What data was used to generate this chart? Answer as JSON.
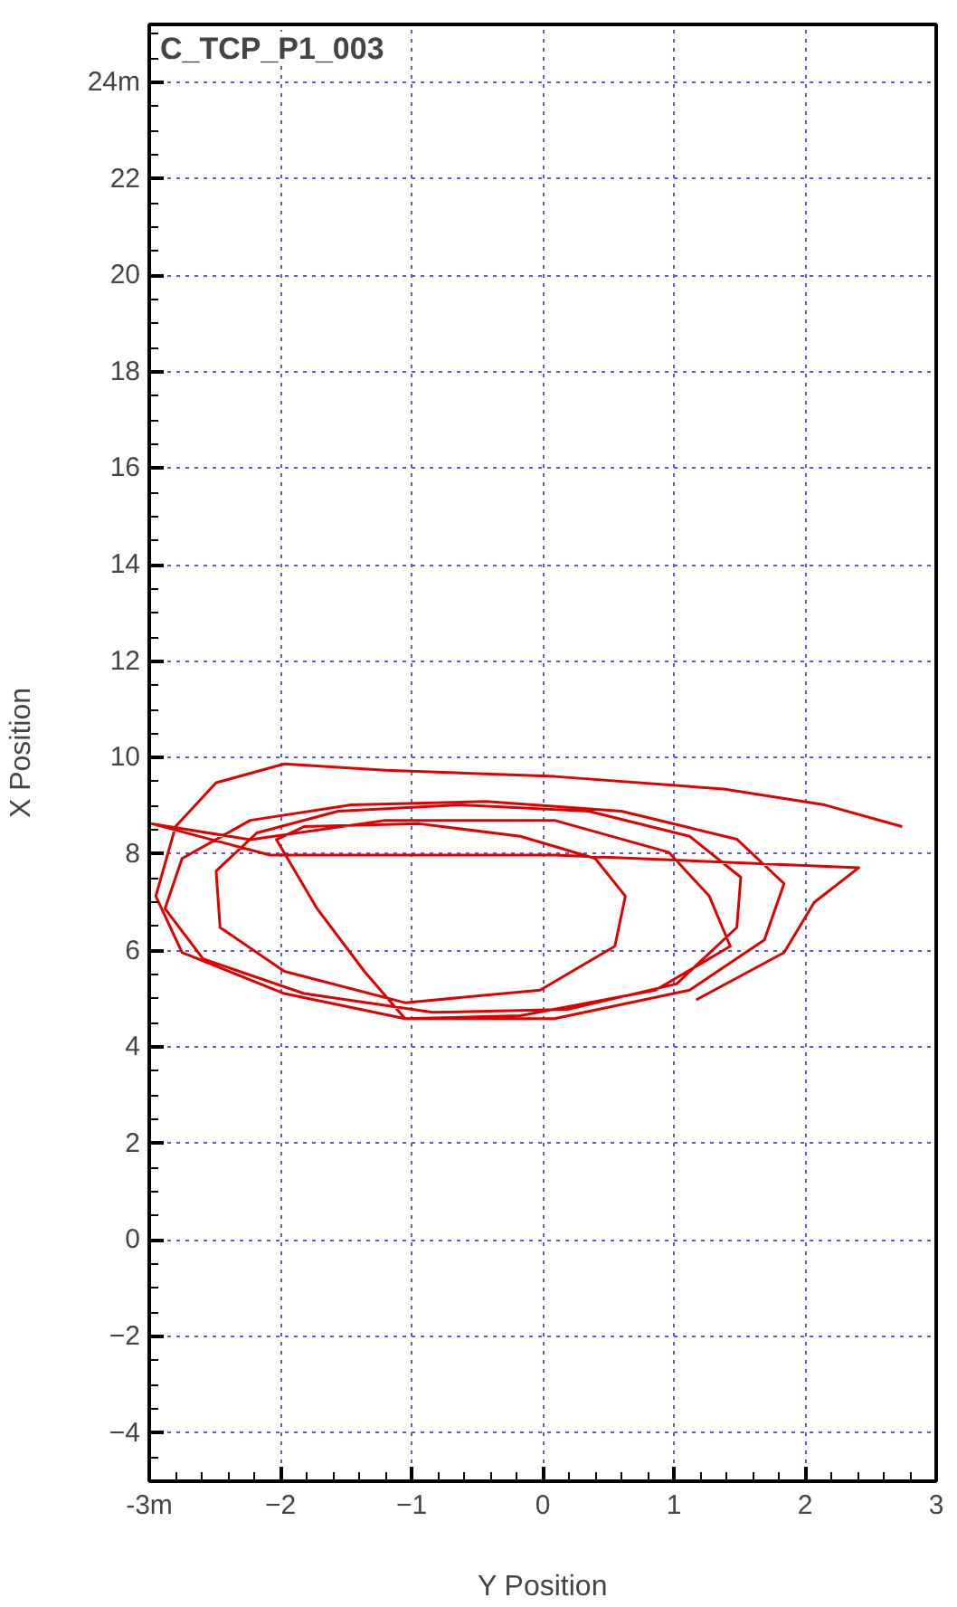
{
  "chart_data": {
    "type": "line",
    "title": "C_TCP_P1_003",
    "xlabel": "Y Position",
    "ylabel": "X Position",
    "xlim": [
      -3,
      3
    ],
    "ylim": [
      -5,
      25.2
    ],
    "xticks": [
      {
        "value": -3,
        "label": "-3m"
      },
      -2,
      -1,
      0,
      1,
      2,
      3
    ],
    "yticks": [
      -4,
      -2,
      0,
      2,
      4,
      6,
      8,
      10,
      12,
      14,
      16,
      18,
      20,
      22,
      {
        "value": 24,
        "label": "24m"
      }
    ],
    "grid": true,
    "marker": "none",
    "line_style": "solid",
    "series": [
      {
        "color": "#e00000",
        "x": [
          2.74,
          2.15,
          1.38,
          0.09,
          -1.2,
          -1.97,
          -2.49,
          -2.8,
          -2.95,
          -2.75,
          -1.97,
          -1.05,
          0.09,
          1.12,
          1.69,
          1.84,
          1.48,
          0.6,
          -0.43,
          -1.46,
          -2.23,
          -2.75,
          -2.88,
          -2.59,
          -1.82,
          -0.84,
          0.19,
          1.02,
          1.48,
          1.51,
          1.12,
          0.35,
          -0.63,
          -1.56,
          -2.18,
          -2.49,
          -2.46,
          -1.97,
          -1.05,
          -0.02,
          0.55,
          0.63,
          0.4,
          -0.17,
          -0.94,
          -1.82,
          -2.03,
          -1.72,
          -1.36,
          -1.05,
          -0.17,
          0.86,
          1.43,
          1.27,
          0.96,
          0.09,
          -1.2,
          -2.23,
          -2.98,
          -2.08,
          0.09,
          2.41,
          2.07,
          1.84,
          1.17
        ],
        "values": [
          8.57,
          9.02,
          9.35,
          9.61,
          9.74,
          9.87,
          9.48,
          8.57,
          7.13,
          5.96,
          5.11,
          4.59,
          4.59,
          5.18,
          6.22,
          7.39,
          8.31,
          8.89,
          9.09,
          9.02,
          8.7,
          7.91,
          6.87,
          5.83,
          5.11,
          4.72,
          4.78,
          5.31,
          6.48,
          7.52,
          8.37,
          8.89,
          9.02,
          8.89,
          8.44,
          7.65,
          6.48,
          5.57,
          4.92,
          5.18,
          6.09,
          7.13,
          7.91,
          8.37,
          8.63,
          8.57,
          8.3,
          6.87,
          5.57,
          4.59,
          4.65,
          5.18,
          6.09,
          7.13,
          8.04,
          8.7,
          8.7,
          8.3,
          8.63,
          7.98,
          7.98,
          7.72,
          7.0,
          5.96,
          4.98
        ]
      }
    ]
  }
}
